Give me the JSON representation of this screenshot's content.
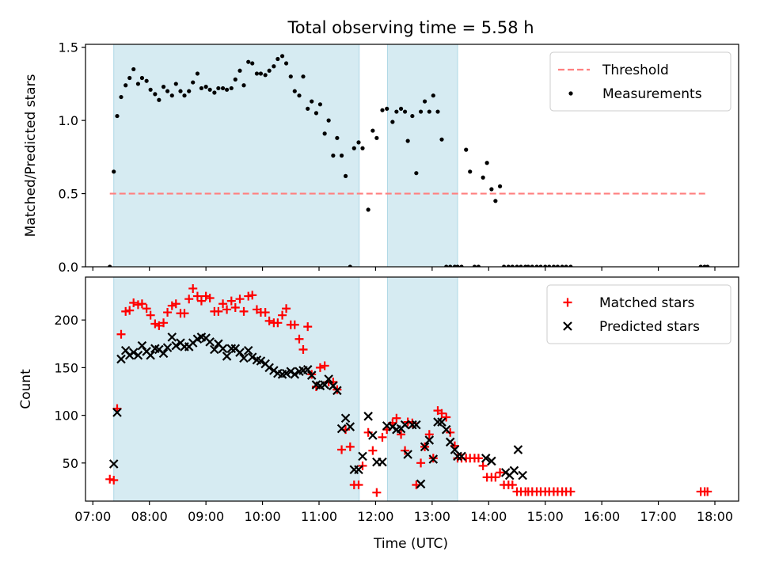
{
  "chart_data": {
    "title": "Total observing time = 5.58 h",
    "xlabel": "Time (UTC)",
    "x_unit": "hours UTC",
    "xlim": [
      6.87,
      18.42
    ],
    "xticks": [
      {
        "value": 7,
        "label": "07:00"
      },
      {
        "value": 8,
        "label": "08:00"
      },
      {
        "value": 9,
        "label": "09:00"
      },
      {
        "value": 10,
        "label": "10:00"
      },
      {
        "value": 11,
        "label": "11:00"
      },
      {
        "value": 12,
        "label": "12:00"
      },
      {
        "value": 13,
        "label": "13:00"
      },
      {
        "value": 14,
        "label": "14:00"
      },
      {
        "value": 15,
        "label": "15:00"
      },
      {
        "value": 16,
        "label": "16:00"
      },
      {
        "value": 17,
        "label": "17:00"
      },
      {
        "value": 18,
        "label": "18:00"
      }
    ],
    "spans": [
      [
        7.37,
        11.71
      ],
      [
        12.21,
        13.45
      ]
    ],
    "span_color": "#add8e6",
    "panels": [
      {
        "type": "scatter",
        "ylabel": "Matched/Predicted stars",
        "ylim": [
          0,
          1.52
        ],
        "yticks": [
          {
            "value": 0,
            "label": "0.0"
          },
          {
            "value": 0.5,
            "label": "0.5"
          },
          {
            "value": 1.0,
            "label": "1.0"
          },
          {
            "value": 1.5,
            "label": "1.5"
          }
        ],
        "threshold": {
          "name": "Threshold",
          "value": 0.5,
          "x": [
            7.3,
            17.87
          ],
          "color": "#ff8080"
        },
        "legend_position": "top-right",
        "series": [
          {
            "name": "Measurements",
            "marker": "dot",
            "color": "#000000",
            "x": [
              7.3,
              7.37,
              7.43,
              7.5,
              7.58,
              7.65,
              7.72,
              7.8,
              7.87,
              7.95,
              8.02,
              8.1,
              8.17,
              8.25,
              8.32,
              8.4,
              8.47,
              8.55,
              8.62,
              8.7,
              8.77,
              8.85,
              8.92,
              9.0,
              9.07,
              9.15,
              9.22,
              9.3,
              9.37,
              9.45,
              9.52,
              9.6,
              9.67,
              9.75,
              9.82,
              9.9,
              9.97,
              10.05,
              10.12,
              10.2,
              10.27,
              10.35,
              10.42,
              10.5,
              10.57,
              10.65,
              10.72,
              10.8,
              10.87,
              10.95,
              11.02,
              11.1,
              11.17,
              11.25,
              11.32,
              11.4,
              11.47,
              11.55,
              11.62,
              11.7,
              11.77,
              11.87,
              11.95,
              12.02,
              12.12,
              12.2,
              12.3,
              12.37,
              12.45,
              12.52,
              12.57,
              12.65,
              12.72,
              12.8,
              12.87,
              12.95,
              13.02,
              13.1,
              13.17,
              13.25,
              13.32,
              13.4,
              13.45,
              13.52,
              13.6,
              13.67,
              13.75,
              13.82,
              13.9,
              13.97,
              14.05,
              14.12,
              14.2,
              14.27,
              14.35,
              14.42,
              14.5,
              14.57,
              14.65,
              14.7,
              14.77,
              14.85,
              14.92,
              15.0,
              15.07,
              15.15,
              15.22,
              15.3,
              15.37,
              15.45,
              17.75,
              17.82,
              17.87
            ],
            "y": [
              0.0,
              0.65,
              1.03,
              1.16,
              1.24,
              1.29,
              1.35,
              1.25,
              1.29,
              1.27,
              1.21,
              1.18,
              1.14,
              1.23,
              1.2,
              1.17,
              1.25,
              1.2,
              1.17,
              1.2,
              1.26,
              1.32,
              1.22,
              1.23,
              1.21,
              1.19,
              1.22,
              1.22,
              1.21,
              1.22,
              1.28,
              1.34,
              1.24,
              1.4,
              1.39,
              1.32,
              1.32,
              1.31,
              1.34,
              1.37,
              1.42,
              1.44,
              1.39,
              1.3,
              1.2,
              1.17,
              1.3,
              1.08,
              1.13,
              1.05,
              1.11,
              0.91,
              1.0,
              0.76,
              0.88,
              0.76,
              0.62,
              0.0,
              0.81,
              0.85,
              0.81,
              0.39,
              0.93,
              0.88,
              1.07,
              1.08,
              0.99,
              1.06,
              1.08,
              1.06,
              0.86,
              1.03,
              0.64,
              1.06,
              1.13,
              1.06,
              1.17,
              1.06,
              0.87,
              0.0,
              0.0,
              0.0,
              0.0,
              0.0,
              0.8,
              0.65,
              0.0,
              0.0,
              0.61,
              0.71,
              0.53,
              0.45,
              0.55,
              0.0,
              0.0,
              0.0,
              0.0,
              0.0,
              0.0,
              0.0,
              0.0,
              0.0,
              0.0,
              0.0,
              0.0,
              0.0,
              0.0,
              0.0,
              0.0,
              0.0,
              0.0,
              0.0,
              0.0
            ]
          }
        ]
      },
      {
        "type": "scatter",
        "ylabel": "Count",
        "ylim": [
          10,
          245
        ],
        "yticks": [
          {
            "value": 50,
            "label": "50"
          },
          {
            "value": 100,
            "label": "100"
          },
          {
            "value": 150,
            "label": "150"
          },
          {
            "value": 200,
            "label": "200"
          }
        ],
        "legend_position": "top-right",
        "series": [
          {
            "name": "Matched stars",
            "marker": "plus",
            "color": "#ff0000",
            "x": [
              7.3,
              7.37,
              7.43,
              7.5,
              7.58,
              7.65,
              7.72,
              7.8,
              7.87,
              7.95,
              8.02,
              8.1,
              8.17,
              8.25,
              8.32,
              8.4,
              8.47,
              8.55,
              8.62,
              8.7,
              8.77,
              8.85,
              8.92,
              9.0,
              9.07,
              9.15,
              9.22,
              9.3,
              9.37,
              9.45,
              9.52,
              9.6,
              9.67,
              9.75,
              9.82,
              9.9,
              9.97,
              10.05,
              10.12,
              10.2,
              10.27,
              10.35,
              10.42,
              10.5,
              10.57,
              10.65,
              10.72,
              10.8,
              10.87,
              10.95,
              11.02,
              11.1,
              11.17,
              11.25,
              11.32,
              11.4,
              11.47,
              11.55,
              11.62,
              11.7,
              11.77,
              11.87,
              11.95,
              12.02,
              12.12,
              12.2,
              12.3,
              12.37,
              12.45,
              12.52,
              12.57,
              12.65,
              12.72,
              12.8,
              12.87,
              12.95,
              13.02,
              13.1,
              13.17,
              13.25,
              13.32,
              13.4,
              13.45,
              13.52,
              13.6,
              13.67,
              13.75,
              13.82,
              13.9,
              13.97,
              14.05,
              14.12,
              14.2,
              14.27,
              14.35,
              14.42,
              14.5,
              14.57,
              14.65,
              14.7,
              14.77,
              14.85,
              14.92,
              15.0,
              15.07,
              15.15,
              15.22,
              15.3,
              15.37,
              15.45,
              17.75,
              17.82,
              17.87
            ],
            "y": [
              33,
              32,
              107,
              185,
              209,
              210,
              218,
              216,
              217,
              212,
              205,
              196,
              194,
              197,
              208,
              215,
              217,
              207,
              207,
              222,
              233,
              225,
              220,
              225,
              223,
              209,
              209,
              217,
              211,
              220,
              213,
              222,
              209,
              225,
              226,
              211,
              208,
              208,
              199,
              197,
              197,
              205,
              212,
              195,
              195,
              180,
              169,
              193,
              143,
              130,
              150,
              152,
              135,
              135,
              127,
              64,
              85,
              67,
              27,
              27,
              47,
              82,
              63,
              19,
              77,
              85,
              92,
              97,
              80,
              63,
              93,
              92,
              27,
              50,
              67,
              80,
              55,
              105,
              102,
              98,
              82,
              68,
              55,
              55,
              55,
              55,
              55,
              55,
              47,
              35,
              35,
              35,
              40,
              27,
              27,
              27,
              20,
              20,
              20,
              20,
              20,
              20,
              20,
              20,
              20,
              20,
              20,
              20,
              20,
              20,
              20,
              20,
              20
            ]
          },
          {
            "name": "Predicted stars",
            "marker": "x",
            "color": "#000000",
            "x": [
              7.37,
              7.43,
              7.5,
              7.58,
              7.65,
              7.72,
              7.8,
              7.87,
              7.95,
              8.02,
              8.1,
              8.17,
              8.25,
              8.32,
              8.4,
              8.47,
              8.55,
              8.62,
              8.7,
              8.77,
              8.85,
              8.92,
              9.0,
              9.07,
              9.15,
              9.22,
              9.3,
              9.37,
              9.45,
              9.52,
              9.6,
              9.67,
              9.75,
              9.82,
              9.9,
              9.97,
              10.05,
              10.12,
              10.2,
              10.27,
              10.35,
              10.42,
              10.5,
              10.57,
              10.65,
              10.72,
              10.8,
              10.87,
              10.95,
              11.02,
              11.1,
              11.17,
              11.25,
              11.32,
              11.4,
              11.47,
              11.55,
              11.62,
              11.7,
              11.77,
              11.87,
              11.95,
              12.02,
              12.12,
              12.2,
              12.3,
              12.37,
              12.45,
              12.52,
              12.57,
              12.65,
              12.72,
              12.8,
              12.87,
              12.95,
              13.02,
              13.1,
              13.17,
              13.25,
              13.32,
              13.4,
              13.45,
              13.52,
              13.95,
              14.05,
              14.3,
              14.37,
              14.45,
              14.52,
              14.6
            ],
            "y": [
              49,
              103,
              159,
              168,
              163,
              166,
              163,
              173,
              167,
              163,
              170,
              169,
              165,
              171,
              182,
              173,
              176,
              172,
              172,
              176,
              180,
              182,
              181,
              177,
              169,
              175,
              170,
              162,
              170,
              170,
              166,
              160,
              168,
              161,
              158,
              157,
              154,
              150,
              147,
              144,
              143,
              144,
              146,
              143,
              146,
              147,
              148,
              142,
              132,
              131,
              132,
              138,
              131,
              126,
              86,
              97,
              88,
              43,
              43,
              57,
              99,
              79,
              51,
              51,
              89,
              88,
              85,
              86,
              90,
              59,
              90,
              90,
              28,
              67,
              74,
              54,
              93,
              93,
              85,
              72,
              64,
              57,
              57,
              55,
              52,
              40,
              37,
              42,
              64,
              37
            ]
          }
        ]
      }
    ]
  }
}
